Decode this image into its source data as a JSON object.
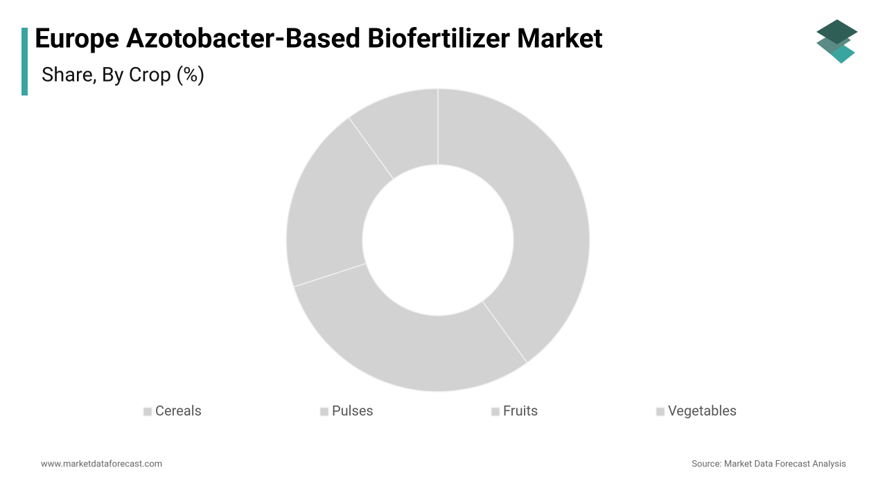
{
  "chart_data": {
    "type": "donut",
    "title": "Europe Azotobacter-Based Biofertilizer Market",
    "subtitle": "Share, By Crop (%)",
    "categories": [
      "Cereals",
      "Pulses",
      "Fruits",
      "Vegetables"
    ],
    "values": [
      40,
      30,
      20,
      10
    ],
    "colors": [
      "#d3d2d3",
      "#d3d2d3",
      "#d3d2d3",
      "#d3d2d3"
    ],
    "legend": "bottom"
  },
  "footer": {
    "website": "www.marketdataforecast.com",
    "source": "Source: Market Data Forecast Analysis"
  }
}
